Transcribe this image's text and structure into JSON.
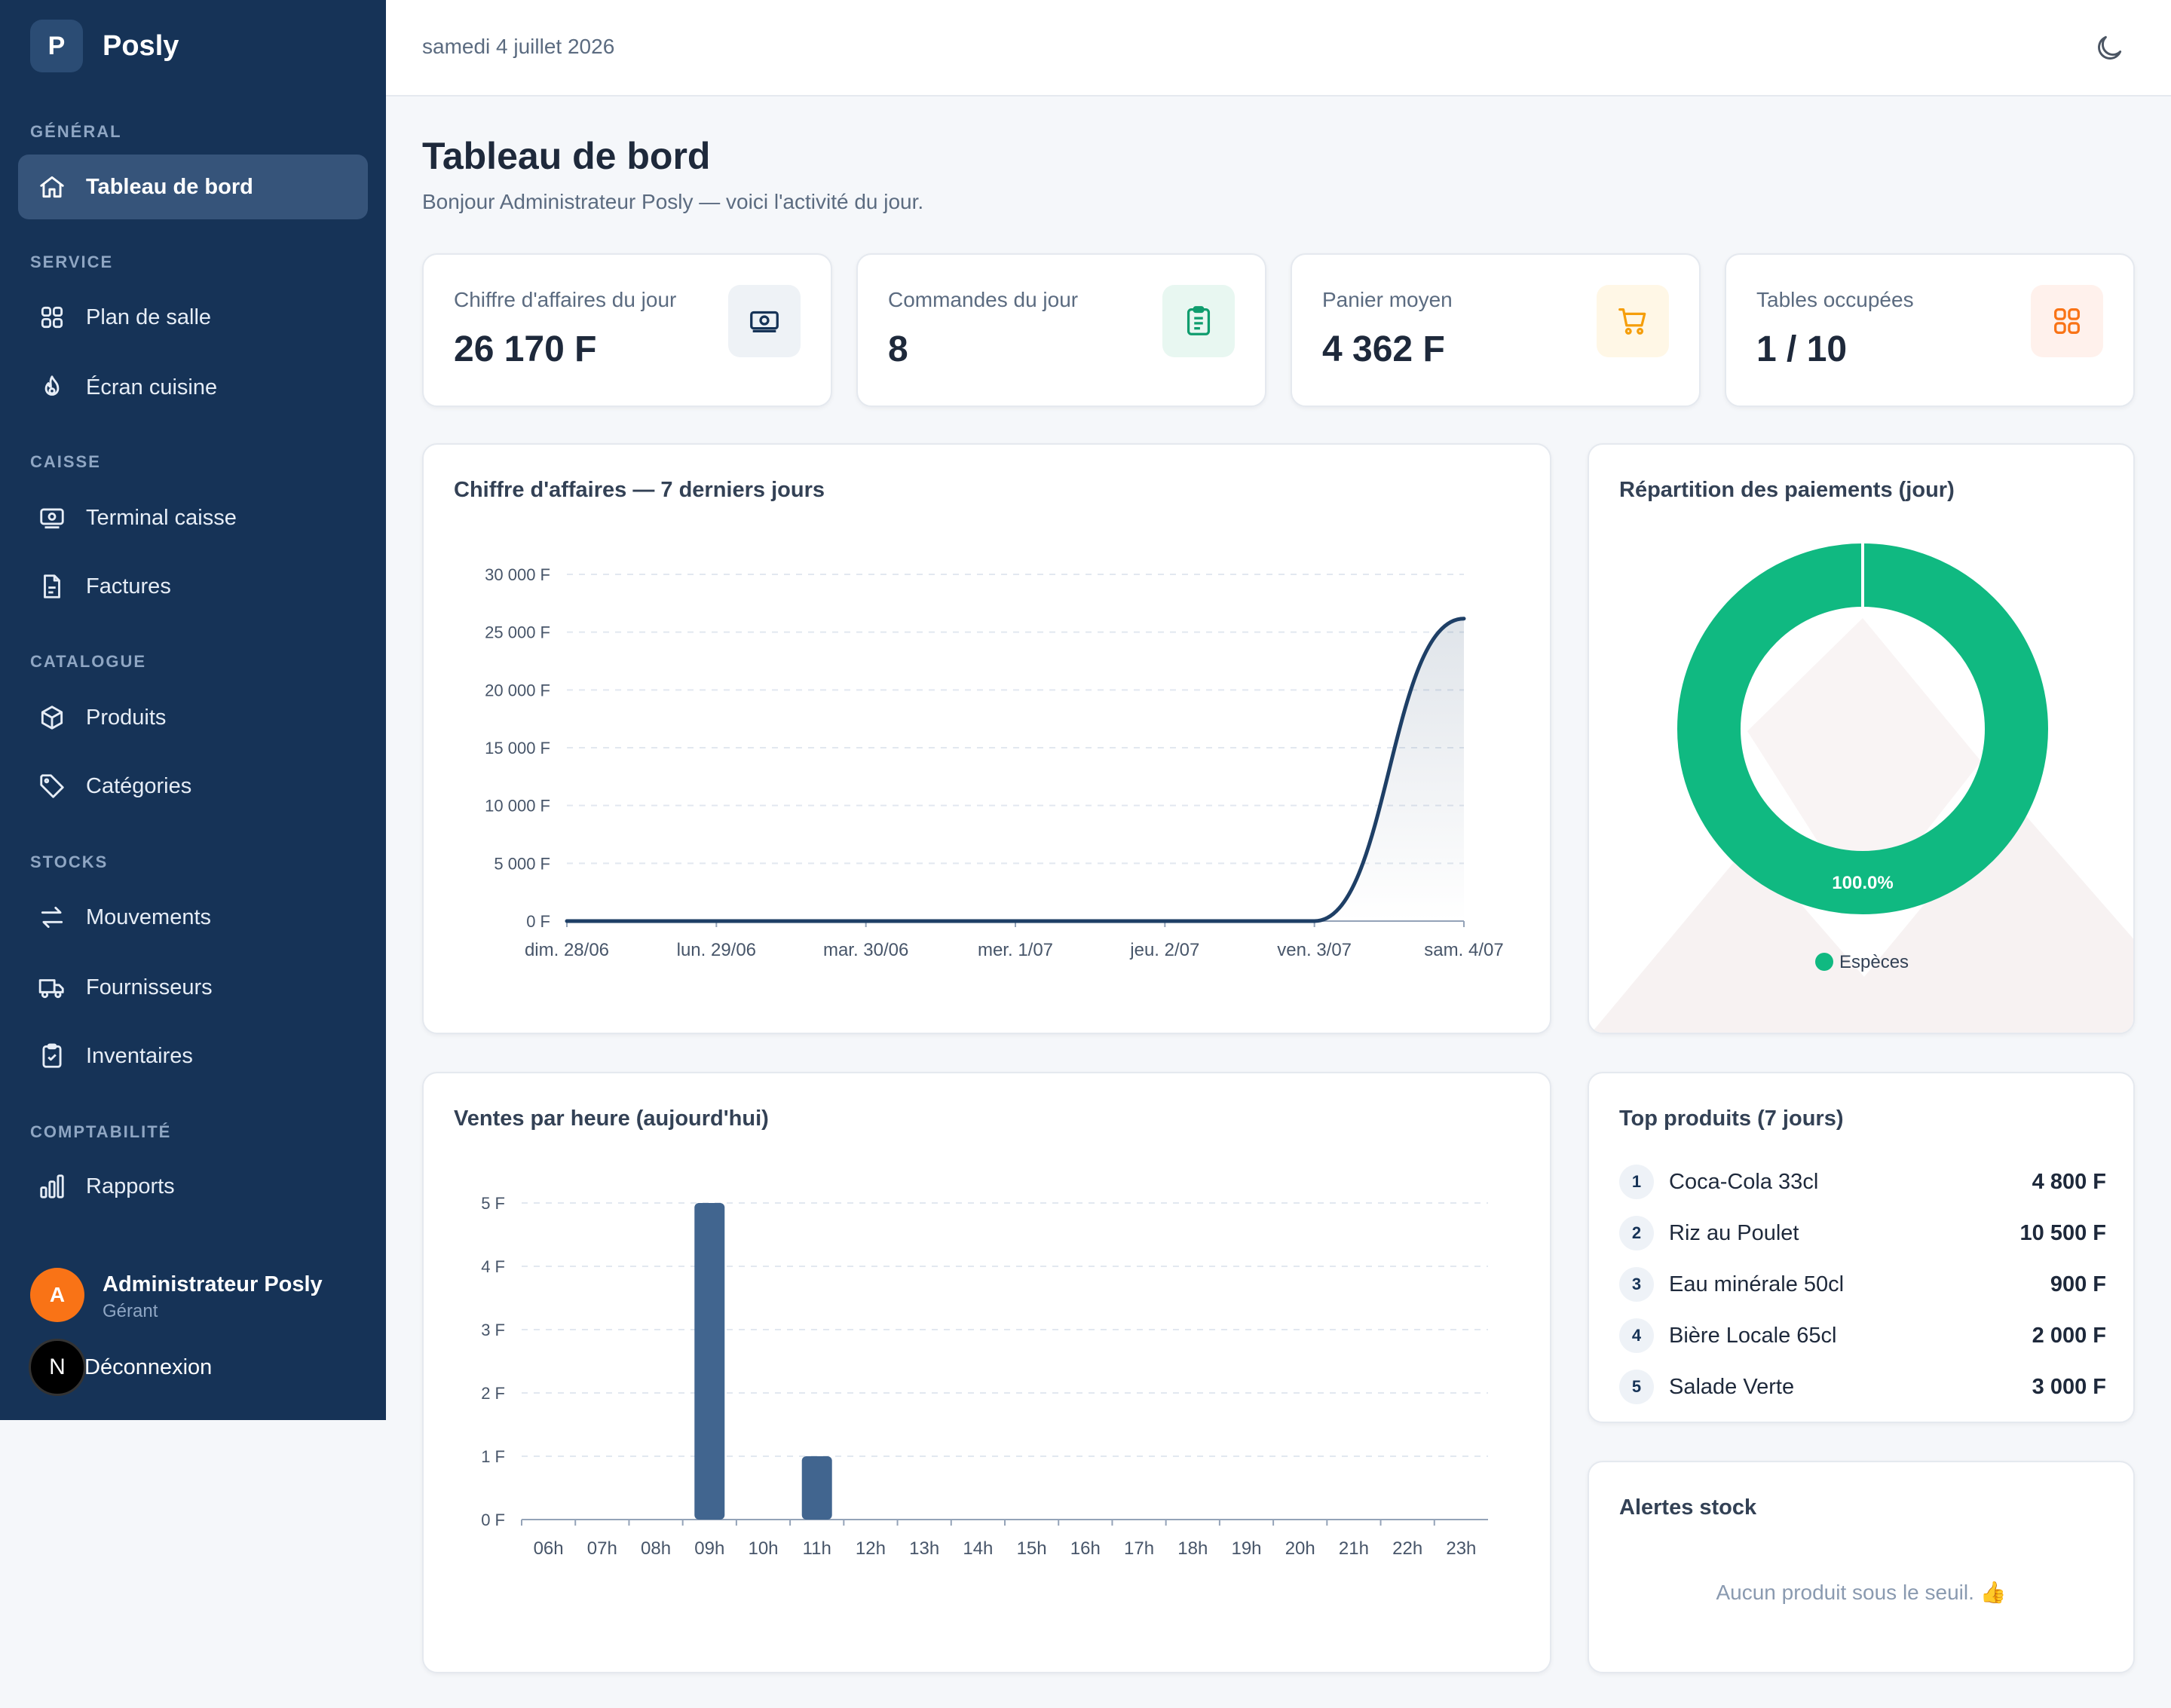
{
  "brand": {
    "logo_letter": "P",
    "name": "Posly"
  },
  "sidebar": {
    "sections": [
      {
        "label": "GÉNÉRAL"
      },
      {
        "label": "SERVICE"
      },
      {
        "label": "CAISSE"
      },
      {
        "label": "CATALOGUE"
      },
      {
        "label": "STOCKS"
      },
      {
        "label": "COMPTABILITÉ"
      }
    ],
    "items": [
      {
        "label": "Tableau de bord",
        "icon": "home-icon",
        "active": true
      },
      {
        "label": "Plan de salle",
        "icon": "grid-icon"
      },
      {
        "label": "Écran cuisine",
        "icon": "flame-icon"
      },
      {
        "label": "Terminal caisse",
        "icon": "cash-register-icon"
      },
      {
        "label": "Factures",
        "icon": "document-icon"
      },
      {
        "label": "Produits",
        "icon": "box-icon"
      },
      {
        "label": "Catégories",
        "icon": "tag-icon"
      },
      {
        "label": "Mouvements",
        "icon": "arrows-icon"
      },
      {
        "label": "Fournisseurs",
        "icon": "truck-icon"
      },
      {
        "label": "Inventaires",
        "icon": "clipboard-check-icon"
      },
      {
        "label": "Rapports",
        "icon": "bar-chart-icon"
      }
    ],
    "user": {
      "initial": "A",
      "name": "Administrateur Posly",
      "role": "Gérant"
    },
    "logout": {
      "icon_letter": "N",
      "label": "Déconnexion"
    }
  },
  "topbar": {
    "date": "samedi 4 juillet 2026",
    "theme_icon": "moon-icon"
  },
  "page": {
    "title": "Tableau de bord",
    "subtitle": "Bonjour Administrateur Posly — voici l'activité du jour."
  },
  "kpis": [
    {
      "label": "Chiffre d'affaires du jour",
      "value": "26 170 F",
      "icon": "money-icon",
      "color": "#163357",
      "bg": "#eef2f6"
    },
    {
      "label": "Commandes du jour",
      "value": "8",
      "icon": "clipboard-icon",
      "color": "#0f9d6e",
      "bg": "#e8f7f1"
    },
    {
      "label": "Panier moyen",
      "value": "4 362 F",
      "icon": "cart-icon",
      "color": "#f59e0b",
      "bg": "#fff7e6"
    },
    {
      "label": "Tables occupées",
      "value": "1 / 10",
      "icon": "grid-icon",
      "color": "#f97316",
      "bg": "#fff1ec"
    }
  ],
  "revenue_card": {
    "title": "Chiffre d'affaires — 7 derniers jours"
  },
  "payments_card": {
    "title": "Répartition des paiements (jour)"
  },
  "hourly_card": {
    "title": "Ventes par heure (aujourd'hui)"
  },
  "top_products": {
    "title": "Top produits (7 jours)",
    "items": [
      {
        "rank": "1",
        "name": "Coca-Cola 33cl",
        "value": "4 800 F"
      },
      {
        "rank": "2",
        "name": "Riz au Poulet",
        "value": "10 500 F"
      },
      {
        "rank": "3",
        "name": "Eau minérale 50cl",
        "value": "900 F"
      },
      {
        "rank": "4",
        "name": "Bière Locale 65cl",
        "value": "2 000 F"
      },
      {
        "rank": "5",
        "name": "Salade Verte",
        "value": "3 000 F"
      }
    ]
  },
  "stock_alerts": {
    "title": "Alertes stock",
    "empty": "Aucun produit sous le seuil. 👍"
  },
  "chart_data": [
    {
      "type": "line",
      "title": "Chiffre d'affaires — 7 derniers jours",
      "categories": [
        "dim. 28/06",
        "lun. 29/06",
        "mar. 30/06",
        "mer. 1/07",
        "jeu. 2/07",
        "ven. 3/07",
        "sam. 4/07"
      ],
      "values": [
        0,
        0,
        0,
        0,
        0,
        0,
        26170
      ],
      "yticks": [
        "0 F",
        "5 000 F",
        "10 000 F",
        "15 000 F",
        "20 000 F",
        "25 000 F",
        "30 000 F"
      ],
      "ylim": [
        0,
        30000
      ],
      "color": "#1e3f66",
      "grid": true
    },
    {
      "type": "pie",
      "title": "Répartition des paiements (jour)",
      "slices": [
        {
          "label": "Espèces",
          "value": 100.0,
          "display": "100.0%",
          "color": "#10b981"
        }
      ],
      "legend": "bottom"
    },
    {
      "type": "bar",
      "title": "Ventes par heure (aujourd'hui)",
      "categories": [
        "06h",
        "07h",
        "08h",
        "09h",
        "10h",
        "11h",
        "12h",
        "13h",
        "14h",
        "15h",
        "16h",
        "17h",
        "18h",
        "19h",
        "20h",
        "21h",
        "22h",
        "23h"
      ],
      "values": [
        0,
        0,
        0,
        5,
        0,
        1,
        0,
        0,
        0,
        0,
        0,
        0,
        0,
        0,
        0,
        0,
        0,
        0
      ],
      "yticks": [
        "0 F",
        "1 F",
        "2 F",
        "3 F",
        "4 F",
        "5 F"
      ],
      "ylim": [
        0,
        5
      ],
      "color": "#41658f",
      "grid": true
    }
  ]
}
